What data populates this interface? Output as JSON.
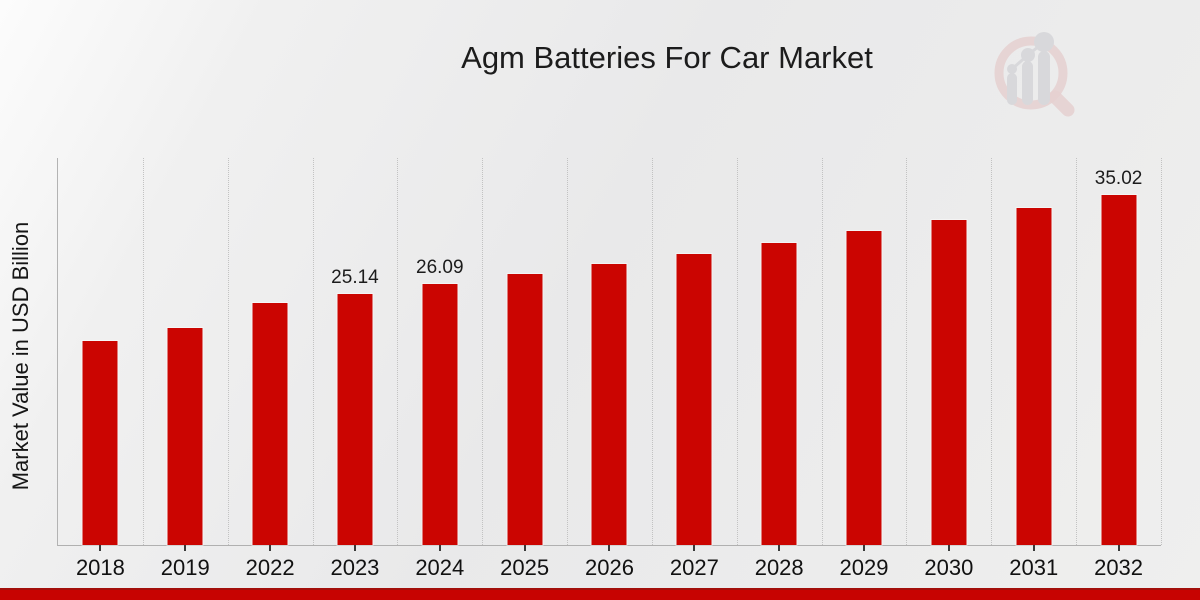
{
  "header": {
    "title": "Agm Batteries For Car Market"
  },
  "chart_data": {
    "type": "bar",
    "title": "Agm Batteries For Car Market",
    "xlabel": "",
    "ylabel": "Market Value in USD Billion",
    "categories": [
      "2018",
      "2019",
      "2022",
      "2023",
      "2024",
      "2025",
      "2026",
      "2027",
      "2028",
      "2029",
      "2030",
      "2031",
      "2032"
    ],
    "values": [
      20.45,
      21.73,
      24.25,
      25.14,
      26.09,
      27.07,
      28.08,
      29.13,
      30.22,
      31.36,
      32.53,
      33.75,
      35.02
    ],
    "value_labels": {
      "2023": "25.14",
      "2024": "26.09",
      "2032": "35.02"
    },
    "ylim": [
      0,
      38.7
    ],
    "y_tick_labels": "none",
    "legend": "none",
    "grid": "vertical dotted gridlines at category boundaries",
    "bar_color": "#cb0501"
  },
  "branding": {
    "logo_icon": "magnifier-bar-chart-logo",
    "accent_strip_color": "#c70301"
  },
  "colors": {
    "background": "#ebebeb",
    "bar": "#cb0501",
    "accent_strip": "#c70301",
    "gridline": "#c2c2c2",
    "axis": "#b3b3b3",
    "text": "#1c1c1c",
    "logo_ring": "#e4c8c8",
    "logo_bars": "#d4d4d8"
  }
}
